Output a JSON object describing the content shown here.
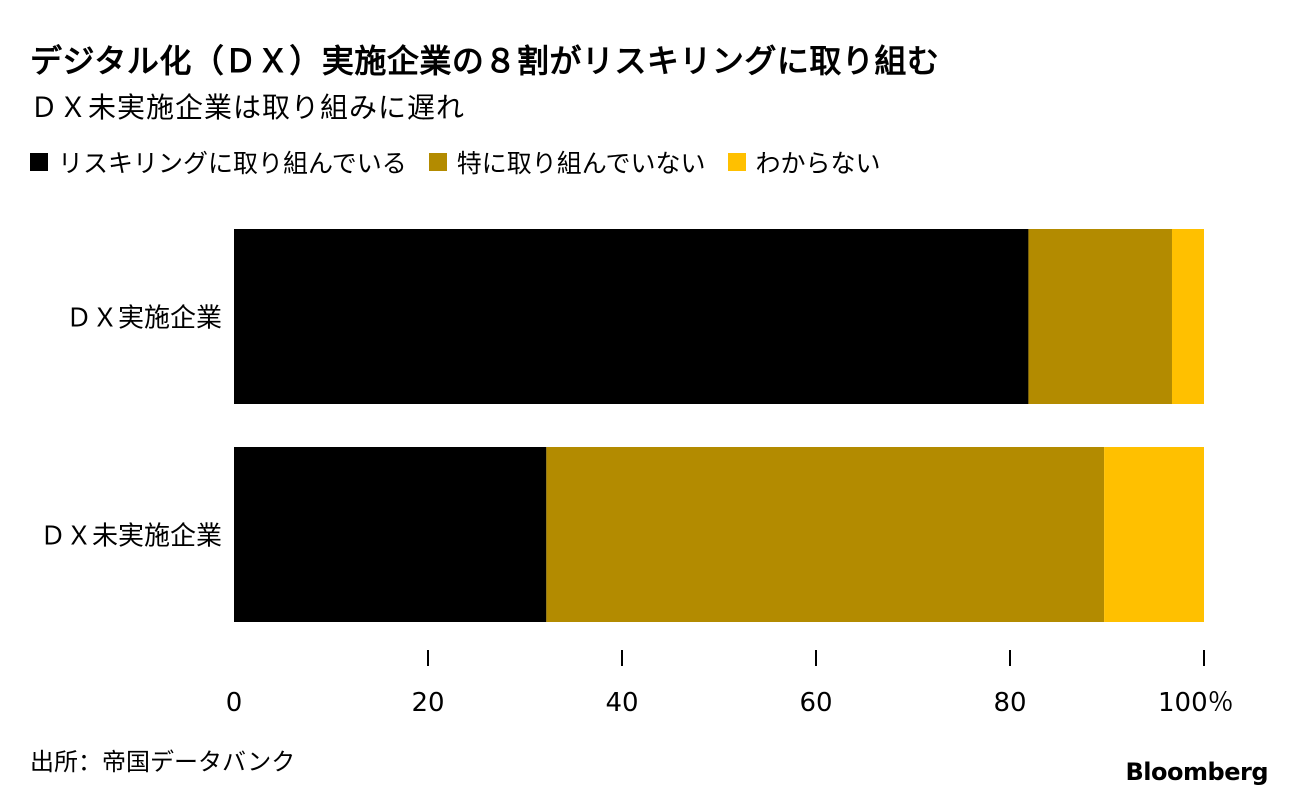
{
  "title": "デジタル化（ＤＸ）実施企業の８割がリスキリングに取り組む",
  "subtitle": "ＤＸ未実施企業は取り組みに遅れ",
  "source": "出所：帝国データバンク",
  "brand": "Bloomberg",
  "colors": {
    "series_0": "#000000",
    "series_1": "#b38b00",
    "series_2": "#ffc000"
  },
  "chart_data": {
    "type": "bar",
    "orientation": "horizontal",
    "stacked": true,
    "categories": [
      "ＤＸ実施企業",
      "ＤＸ未実施企業"
    ],
    "series": [
      {
        "name": "リスキリングに取り組んでいる",
        "values": [
          81.9,
          32.2
        ]
      },
      {
        "name": "特に取り組んでいない",
        "values": [
          14.8,
          57.5
        ]
      },
      {
        "name": "わからない",
        "values": [
          3.3,
          10.3
        ]
      }
    ],
    "xlim": [
      0,
      100
    ],
    "x_ticks": [
      "0",
      "20",
      "40",
      "60",
      "80",
      "100％"
    ],
    "legend_position": "top-left",
    "grid": false
  }
}
